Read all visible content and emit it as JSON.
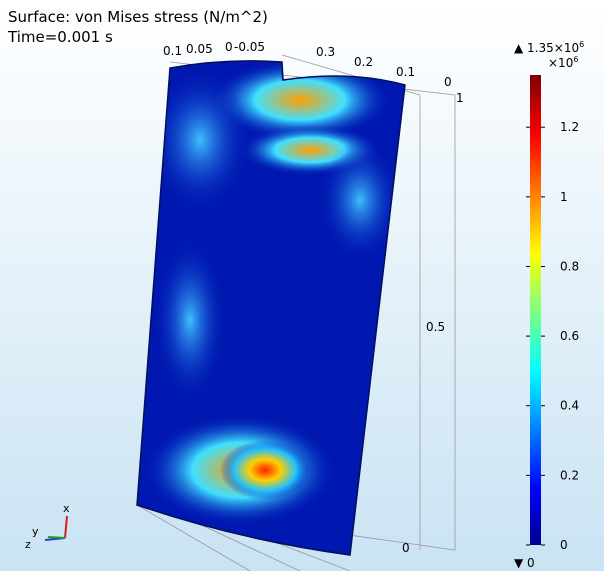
{
  "plot": {
    "title": "Surface: von Mises stress (N/m^2)",
    "time": "Time=0.001 s",
    "axis_labels": {
      "y_top": [
        "0.1",
        "0.05",
        "0",
        "-0.05"
      ],
      "x_top": [
        "0.3",
        "0.2",
        "0.1",
        "0"
      ],
      "z_right": [
        "1",
        "0.5",
        "0"
      ]
    },
    "triad": [
      "x",
      "y",
      "z"
    ]
  },
  "colorbar": {
    "range": [
      0,
      1.35
    ],
    "max": {
      "value": 1.35,
      "label": "1.35×10"
    },
    "max_exponent": "6",
    "min": {
      "value": 0,
      "label": "0"
    },
    "multiplier": "×10",
    "multiplier_exponent": "6",
    "ticks": [
      0,
      0.2,
      0.4,
      0.6,
      0.8,
      1,
      1.2
    ]
  }
}
